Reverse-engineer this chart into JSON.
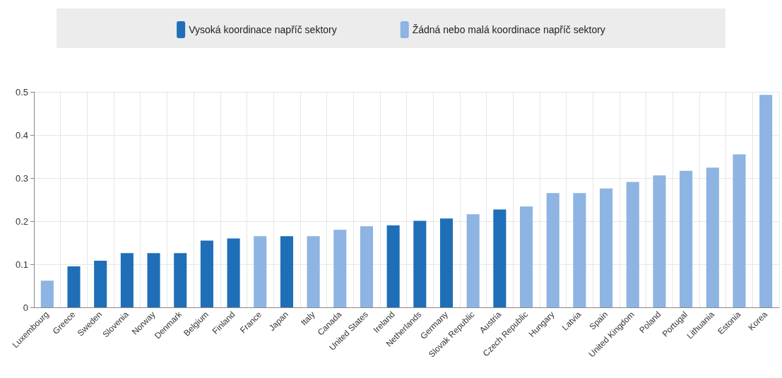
{
  "chart_data": {
    "type": "bar",
    "categories": [
      "Luxembourg",
      "Greece",
      "Sweden",
      "Slovenia",
      "Norway",
      "Denmark",
      "Belgium",
      "Finland",
      "France",
      "Japan",
      "Italy",
      "Canada",
      "United States",
      "Ireland",
      "Netherlands",
      "Germany",
      "Slovak Republic",
      "Austria",
      "Czech Republic",
      "Hungary",
      "Latvia",
      "Spain",
      "United Kingdom",
      "Poland",
      "Portugal",
      "Lithuania",
      "Estonia",
      "Korea"
    ],
    "series": [
      {
        "name": "Vysoká koordinace napříč sektory",
        "color": "#1f6fb8",
        "values": [
          null,
          0.095,
          0.108,
          0.126,
          0.126,
          0.126,
          0.155,
          0.16,
          null,
          0.165,
          null,
          null,
          null,
          0.19,
          0.201,
          0.206,
          null,
          0.227,
          null,
          null,
          null,
          null,
          null,
          null,
          null,
          null,
          null,
          null
        ]
      },
      {
        "name": "Žádná nebo malá koordinace napříč sektory",
        "color": "#8db4e2",
        "values": [
          0.062,
          null,
          null,
          null,
          null,
          null,
          null,
          null,
          0.165,
          null,
          0.165,
          0.18,
          0.188,
          null,
          null,
          null,
          0.216,
          null,
          0.234,
          0.265,
          0.265,
          0.276,
          0.291,
          0.306,
          0.317,
          0.324,
          0.355,
          0.493
        ]
      }
    ],
    "ylim": [
      0,
      0.5
    ],
    "yticks": [
      0,
      0.1,
      0.2,
      0.3,
      0.4,
      0.5
    ],
    "grid": true,
    "legend": "top"
  }
}
